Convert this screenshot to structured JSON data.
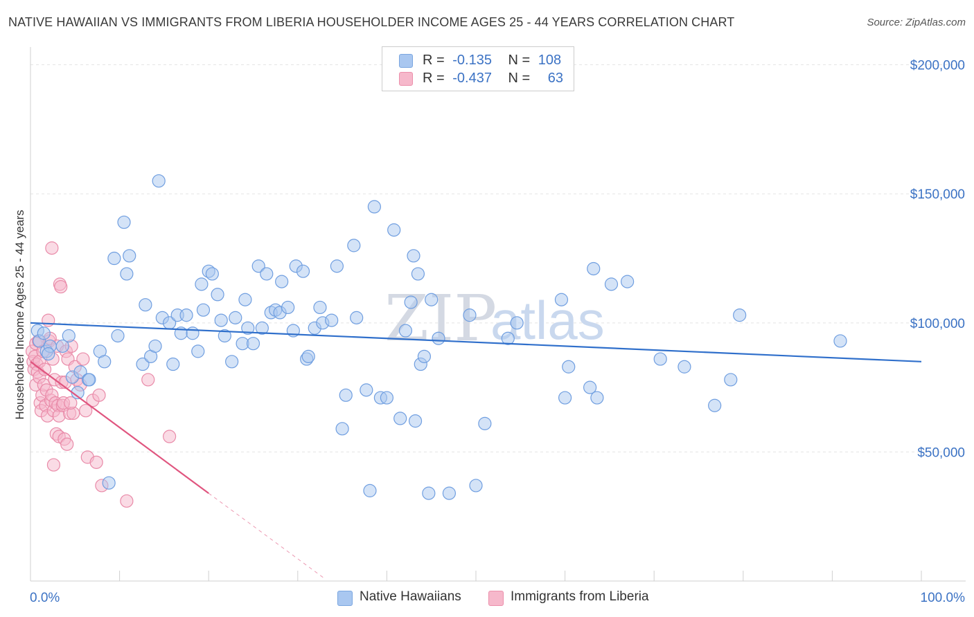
{
  "title": "NATIVE HAWAIIAN VS IMMIGRANTS FROM LIBERIA HOUSEHOLDER INCOME AGES 25 - 44 YEARS CORRELATION CHART",
  "source": "Source: ZipAtlas.com",
  "watermark": {
    "zip": "ZIP",
    "atlas": "atlas"
  },
  "legend": {
    "rows": [
      {
        "r_label": "R =",
        "r_value": "-0.135",
        "n_label": "N =",
        "n_value": "108",
        "color": "#a9c7f0",
        "border": "#7aa6e0"
      },
      {
        "r_label": "R =",
        "r_value": "-0.437",
        "n_label": "N =",
        "n_value": "63",
        "color": "#f6b8cb",
        "border": "#ec8fab"
      }
    ]
  },
  "chart_data": {
    "type": "scatter",
    "title": "NATIVE HAWAIIAN VS IMMIGRANTS FROM LIBERIA HOUSEHOLDER INCOME AGES 25 - 44 YEARS CORRELATION CHART",
    "xlabel": "",
    "ylabel": "Householder Income Ages 25 - 44 years",
    "xlim": [
      0,
      100
    ],
    "ylim": [
      0,
      205000
    ],
    "x_tick_labels": [
      "0.0%",
      "100.0%"
    ],
    "y_ticks": [
      50000,
      100000,
      150000,
      200000
    ],
    "y_tick_labels": [
      "$50,000",
      "$100,000",
      "$150,000",
      "$200,000"
    ],
    "grid": true,
    "legend_position": "bottom",
    "series": [
      {
        "name": "Native Hawaiians",
        "color": "#a9c7f0",
        "edge": "#6f9ee0",
        "trend": {
          "x": [
            0,
            100
          ],
          "y": [
            100000,
            85000
          ],
          "color": "#2f6fcb"
        },
        "points": [
          [
            0.8,
            97000
          ],
          [
            1.0,
            93000
          ],
          [
            1.5,
            96000
          ],
          [
            1.8,
            89000
          ],
          [
            2.2,
            91000
          ],
          [
            2.0,
            88000
          ],
          [
            3.6,
            91000
          ],
          [
            4.3,
            95000
          ],
          [
            4.7,
            79000
          ],
          [
            5.3,
            73000
          ],
          [
            5.6,
            81000
          ],
          [
            6.5,
            78000
          ],
          [
            6.6,
            78000
          ],
          [
            7.8,
            89000
          ],
          [
            8.3,
            85000
          ],
          [
            8.8,
            38000
          ],
          [
            9.4,
            125000
          ],
          [
            9.8,
            95000
          ],
          [
            10.5,
            139000
          ],
          [
            10.8,
            119000
          ],
          [
            11.1,
            126000
          ],
          [
            12.6,
            84000
          ],
          [
            12.9,
            107000
          ],
          [
            13.5,
            87000
          ],
          [
            14.0,
            91000
          ],
          [
            14.4,
            155000
          ],
          [
            14.8,
            102000
          ],
          [
            15.6,
            100000
          ],
          [
            16.0,
            84000
          ],
          [
            16.5,
            103000
          ],
          [
            16.9,
            96000
          ],
          [
            17.5,
            103000
          ],
          [
            18.2,
            96000
          ],
          [
            18.8,
            89000
          ],
          [
            19.2,
            115000
          ],
          [
            19.4,
            105000
          ],
          [
            20.0,
            120000
          ],
          [
            20.4,
            119000
          ],
          [
            21.0,
            111000
          ],
          [
            21.4,
            101000
          ],
          [
            21.8,
            95000
          ],
          [
            22.6,
            85000
          ],
          [
            23.0,
            102000
          ],
          [
            23.8,
            92000
          ],
          [
            24.1,
            109000
          ],
          [
            24.4,
            98000
          ],
          [
            25.0,
            92000
          ],
          [
            25.6,
            122000
          ],
          [
            26.0,
            98000
          ],
          [
            26.5,
            119000
          ],
          [
            27.0,
            104000
          ],
          [
            27.5,
            105000
          ],
          [
            28.0,
            104000
          ],
          [
            28.2,
            116000
          ],
          [
            28.9,
            106000
          ],
          [
            29.5,
            97000
          ],
          [
            29.8,
            122000
          ],
          [
            30.6,
            120000
          ],
          [
            31.0,
            86000
          ],
          [
            31.2,
            87000
          ],
          [
            31.9,
            98000
          ],
          [
            32.5,
            106000
          ],
          [
            32.8,
            100000
          ],
          [
            33.8,
            101000
          ],
          [
            34.4,
            122000
          ],
          [
            35.0,
            59000
          ],
          [
            35.4,
            72000
          ],
          [
            36.3,
            130000
          ],
          [
            36.6,
            102000
          ],
          [
            37.7,
            74000
          ],
          [
            38.1,
            35000
          ],
          [
            38.6,
            145000
          ],
          [
            39.3,
            71000
          ],
          [
            40.0,
            71000
          ],
          [
            40.8,
            136000
          ],
          [
            41.5,
            63000
          ],
          [
            42.1,
            97000
          ],
          [
            42.7,
            108000
          ],
          [
            43.0,
            126000
          ],
          [
            43.2,
            62000
          ],
          [
            43.5,
            119000
          ],
          [
            43.8,
            84000
          ],
          [
            44.2,
            87000
          ],
          [
            44.7,
            34000
          ],
          [
            45.0,
            109000
          ],
          [
            45.8,
            94000
          ],
          [
            47.0,
            34000
          ],
          [
            49.3,
            103000
          ],
          [
            50.0,
            37000
          ],
          [
            51.0,
            61000
          ],
          [
            53.6,
            94000
          ],
          [
            54.6,
            100000
          ],
          [
            59.6,
            109000
          ],
          [
            60.0,
            71000
          ],
          [
            60.4,
            83000
          ],
          [
            62.8,
            75000
          ],
          [
            63.2,
            121000
          ],
          [
            63.6,
            71000
          ],
          [
            65.2,
            115000
          ],
          [
            67.0,
            116000
          ],
          [
            70.7,
            86000
          ],
          [
            73.4,
            83000
          ],
          [
            76.8,
            68000
          ],
          [
            78.6,
            78000
          ],
          [
            79.6,
            103000
          ],
          [
            90.9,
            93000
          ]
        ]
      },
      {
        "name": "Immigrants from Liberia",
        "color": "#f6b8cb",
        "edge": "#e98aa8",
        "trend": {
          "x": [
            0,
            20
          ],
          "y": [
            85000,
            34000
          ],
          "x_dash_end": 33,
          "y_dash_end": 1000,
          "color": "#e0557f"
        },
        "points": [
          [
            0.2,
            89000
          ],
          [
            0.3,
            85000
          ],
          [
            0.4,
            82000
          ],
          [
            0.5,
            87000
          ],
          [
            0.6,
            92000
          ],
          [
            0.6,
            76000
          ],
          [
            0.7,
            84000
          ],
          [
            0.8,
            81000
          ],
          [
            0.9,
            93000
          ],
          [
            1.0,
            85000
          ],
          [
            1.0,
            79000
          ],
          [
            1.1,
            69000
          ],
          [
            1.2,
            66000
          ],
          [
            1.3,
            72000
          ],
          [
            1.4,
            89000
          ],
          [
            1.5,
            76000
          ],
          [
            1.6,
            82000
          ],
          [
            1.7,
            68000
          ],
          [
            1.8,
            74000
          ],
          [
            1.9,
            64000
          ],
          [
            2.0,
            101000
          ],
          [
            2.1,
            93000
          ],
          [
            2.2,
            94000
          ],
          [
            2.3,
            70000
          ],
          [
            2.4,
            72000
          ],
          [
            2.4,
            129000
          ],
          [
            2.5,
            86000
          ],
          [
            2.6,
            66000
          ],
          [
            2.6,
            45000
          ],
          [
            2.7,
            78000
          ],
          [
            2.8,
            69000
          ],
          [
            2.9,
            57000
          ],
          [
            3.0,
            91000
          ],
          [
            3.1,
            68000
          ],
          [
            3.2,
            64000
          ],
          [
            3.2,
            56000
          ],
          [
            3.3,
            115000
          ],
          [
            3.4,
            114000
          ],
          [
            3.5,
            77000
          ],
          [
            3.6,
            68000
          ],
          [
            3.7,
            69000
          ],
          [
            3.8,
            55000
          ],
          [
            3.9,
            77000
          ],
          [
            4.0,
            89000
          ],
          [
            4.1,
            53000
          ],
          [
            4.2,
            86000
          ],
          [
            4.4,
            65000
          ],
          [
            4.6,
            91000
          ],
          [
            4.8,
            65000
          ],
          [
            5.0,
            83000
          ],
          [
            5.2,
            78000
          ],
          [
            5.6,
            76000
          ],
          [
            5.9,
            86000
          ],
          [
            6.2,
            66000
          ],
          [
            6.4,
            48000
          ],
          [
            7.0,
            70000
          ],
          [
            7.4,
            46000
          ],
          [
            7.7,
            72000
          ],
          [
            8.0,
            37000
          ],
          [
            10.8,
            31000
          ],
          [
            13.2,
            78000
          ],
          [
            15.6,
            56000
          ],
          [
            4.5,
            69000
          ]
        ]
      }
    ]
  }
}
